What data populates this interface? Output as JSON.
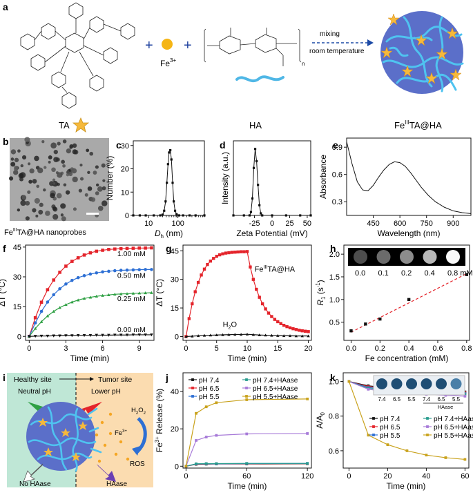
{
  "panels": {
    "a": {
      "letter": "a",
      "labels": {
        "ta": "TA",
        "fe": "Fe",
        "fe_sup": "3+",
        "ha": "HA",
        "mixing": "mixing",
        "room_temp": "room temperature",
        "product": "Fe",
        "product_sup": "III",
        "product_rest": "TA@HA",
        "plus": "+"
      }
    },
    "b": {
      "letter": "b",
      "caption": "Fe",
      "caption_sup": "III",
      "caption_rest": "TA@HA nanoprobes"
    },
    "i": {
      "letter": "i",
      "healthy": "Healthy site",
      "tumor": "Tumor site",
      "neutral_ph": "Neutral pH",
      "lower_ph": "Lower pH",
      "h2o2": "H",
      "h2o2_sub1": "2",
      "h2o2_o": "O",
      "h2o2_sub2": "2",
      "fe": "Fe",
      "fe_sup": "3+",
      "ros": "ROS",
      "no_haase": "No HAase",
      "haase": "HAase"
    }
  },
  "colors": {
    "red": "#e4242b",
    "blue": "#2d6fd4",
    "green": "#2ea043",
    "black": "#111111",
    "purple": "#a77ad8",
    "gold": "#c9a21c",
    "teal": "#2a9d8f"
  },
  "chart_data": [
    {
      "id": "c",
      "letter": "c",
      "type": "line",
      "xlabel": "D",
      "xlabel_sub": "h",
      "xlabel_unit": " (nm)",
      "ylabel": "Number (%)",
      "xscale": "log",
      "xlim": [
        3,
        800
      ],
      "ylim": [
        0,
        32
      ],
      "xticks": [
        10,
        100
      ],
      "xtick_labels": [
        "10",
        "100"
      ],
      "yticks": [
        0,
        10,
        20,
        30
      ],
      "ytick_labels": [
        "0",
        "10",
        "20",
        "30"
      ],
      "x": [
        3,
        5,
        8,
        15,
        25,
        30,
        34,
        38,
        42,
        46,
        50,
        55,
        60,
        66,
        72,
        80,
        90,
        110,
        150,
        250,
        400,
        800
      ],
      "y": [
        0,
        0,
        0,
        0,
        0,
        0.3,
        2,
        6,
        14,
        22,
        27,
        28,
        24,
        14,
        6,
        2,
        0.5,
        0,
        0,
        0,
        0,
        0
      ]
    },
    {
      "id": "d",
      "letter": "d",
      "type": "line",
      "xlabel": "Zeta Potential (mV)",
      "ylabel": "Intensity (a.u.)",
      "xlim": [
        -55,
        55
      ],
      "ylim": [
        0,
        1.1
      ],
      "xticks": [
        -25,
        0,
        25,
        50
      ],
      "xtick_labels": [
        "-25",
        "0",
        "25",
        "50"
      ],
      "x": [
        -55,
        -40,
        -32,
        -30,
        -28,
        -26,
        -24,
        -22,
        -20,
        -18,
        -16,
        -14,
        0,
        20,
        40,
        55
      ],
      "y": [
        0,
        0,
        0,
        0.05,
        0.25,
        0.7,
        0.98,
        0.8,
        0.45,
        0.15,
        0.03,
        0,
        0,
        0,
        0,
        0
      ]
    },
    {
      "id": "e",
      "letter": "e",
      "type": "line",
      "xlabel": "Wavelength (nm)",
      "ylabel": "Absorbance",
      "xlim": [
        300,
        1000
      ],
      "ylim": [
        0.15,
        1.0
      ],
      "xticks": [
        450,
        600,
        750,
        900
      ],
      "xtick_labels": [
        "450",
        "600",
        "750",
        "900"
      ],
      "yticks": [
        0.3,
        0.6,
        0.9
      ],
      "ytick_labels": [
        "0.3",
        "0.6",
        "0.9"
      ],
      "x": [
        300,
        330,
        360,
        390,
        420,
        450,
        480,
        510,
        540,
        570,
        600,
        630,
        660,
        690,
        720,
        760,
        800,
        850,
        900,
        950,
        1000
      ],
      "y": [
        0.96,
        0.72,
        0.52,
        0.43,
        0.42,
        0.48,
        0.57,
        0.65,
        0.71,
        0.74,
        0.73,
        0.69,
        0.62,
        0.54,
        0.46,
        0.37,
        0.3,
        0.24,
        0.2,
        0.18,
        0.17
      ]
    },
    {
      "id": "f",
      "letter": "f",
      "type": "line",
      "xlabel": "Time (min)",
      "ylabel": "ΔT (°C)",
      "xlim": [
        -0.3,
        10.2
      ],
      "ylim": [
        -2,
        46
      ],
      "xticks": [
        0,
        3,
        6,
        9
      ],
      "xtick_labels": [
        "0",
        "3",
        "6",
        "9"
      ],
      "yticks": [
        0,
        15,
        30,
        45
      ],
      "ytick_labels": [
        "0",
        "15",
        "30",
        "45"
      ],
      "x": [
        0,
        0.5,
        1,
        1.5,
        2,
        2.5,
        3,
        3.5,
        4,
        4.5,
        5,
        5.5,
        6,
        6.5,
        7,
        7.5,
        8,
        8.5,
        9,
        9.5,
        10
      ],
      "series": [
        {
          "name": "1.00 mM",
          "color": "#e4242b",
          "marker": "square",
          "values": [
            0,
            9.4,
            17.2,
            23.5,
            28.4,
            32.3,
            35.4,
            37.8,
            39.6,
            41.0,
            42.1,
            42.9,
            43.4,
            43.8,
            44.0,
            44.2,
            44.3,
            44.4,
            44.5,
            44.5,
            44.6
          ]
        },
        {
          "name": "0.50 mM",
          "color": "#2d6fd4",
          "marker": "circle",
          "values": [
            0,
            6.8,
            12.6,
            17.3,
            21.0,
            24.0,
            26.4,
            28.2,
            29.6,
            30.6,
            31.4,
            32.0,
            32.5,
            32.8,
            33.1,
            33.3,
            33.4,
            33.5,
            33.6,
            33.7,
            33.7
          ]
        },
        {
          "name": "0.25 mM",
          "color": "#2ea043",
          "marker": "triangle",
          "values": [
            0,
            4.0,
            7.4,
            10.3,
            12.6,
            14.5,
            16.0,
            17.3,
            18.3,
            19.1,
            19.7,
            20.2,
            20.6,
            20.9,
            21.2,
            21.4,
            21.5,
            21.7,
            21.8,
            21.9,
            22.0
          ]
        },
        {
          "name": "0.00 mM",
          "color": "#111111",
          "marker": "invtriangle",
          "values": [
            0,
            0.1,
            0.2,
            0.2,
            0.3,
            0.3,
            0.4,
            0.4,
            0.5,
            0.5,
            0.5,
            0.6,
            0.6,
            0.6,
            0.7,
            0.7,
            0.7,
            0.8,
            0.8,
            0.8,
            0.8
          ]
        }
      ]
    },
    {
      "id": "g",
      "letter": "g",
      "type": "line",
      "xlabel": "Time (min)",
      "ylabel": "ΔT (°C)",
      "xlim": [
        -0.5,
        20.5
      ],
      "ylim": [
        -2,
        48
      ],
      "xticks": [
        0,
        5,
        10,
        15,
        20
      ],
      "xtick_labels": [
        "0",
        "5",
        "10",
        "15",
        "20"
      ],
      "yticks": [
        0,
        15,
        30,
        45
      ],
      "ytick_labels": [
        "0",
        "15",
        "30",
        "45"
      ],
      "label_fe": "Fe",
      "label_fe_sup": "III",
      "label_fe_rest": "TA@HA",
      "label_h2o": "H",
      "label_h2o_sub": "2",
      "label_h2o_rest": "O",
      "series": [
        {
          "name": "FeIIITA@HA",
          "color": "#e4242b",
          "marker": "square",
          "x": [
            0,
            0.5,
            1,
            1.5,
            2,
            2.5,
            3,
            3.5,
            4,
            4.5,
            5,
            5.5,
            6,
            6.5,
            7,
            7.5,
            8,
            8.5,
            9,
            9.5,
            10,
            10.5,
            11,
            11.5,
            12,
            12.5,
            13,
            13.5,
            14,
            14.5,
            15,
            15.5,
            16,
            16.5,
            17,
            17.5,
            18,
            18.5,
            19,
            19.5,
            20
          ],
          "values": [
            0,
            9.4,
            17.2,
            23.5,
            28.4,
            32.3,
            35.4,
            37.8,
            39.6,
            41.0,
            42.1,
            42.9,
            43.4,
            43.8,
            44.0,
            44.2,
            44.3,
            44.4,
            44.5,
            44.5,
            44.6,
            36.5,
            30.0,
            24.8,
            20.6,
            17.2,
            14.5,
            12.3,
            10.5,
            9.0,
            7.8,
            6.8,
            5.9,
            5.2,
            4.6,
            4.1,
            3.7,
            3.3,
            3.0,
            2.8,
            2.6
          ]
        },
        {
          "name": "H2O",
          "color": "#111111",
          "marker": "triangle",
          "x": [
            0,
            1,
            2,
            3,
            4,
            5,
            6,
            7,
            8,
            9,
            10,
            11,
            12,
            13,
            14,
            15,
            16,
            17,
            18,
            19,
            20
          ],
          "values": [
            0,
            0.2,
            0.4,
            0.6,
            0.7,
            0.8,
            0.9,
            1.0,
            1.1,
            1.1,
            1.2,
            1.0,
            0.8,
            0.7,
            0.6,
            0.5,
            0.4,
            0.4,
            0.3,
            0.3,
            0.3
          ]
        }
      ]
    },
    {
      "id": "h",
      "letter": "h",
      "type": "scatter",
      "xlabel": "Fe concentration (mM)",
      "ylabel": "R",
      "ylabel_sub": "1",
      "ylabel_unit": " (s",
      "ylabel_sup": "-1",
      "ylabel_end": ")",
      "xlim": [
        -0.05,
        0.82
      ],
      "ylim": [
        0.1,
        2.2
      ],
      "xticks": [
        0.0,
        0.2,
        0.4,
        0.6,
        0.8
      ],
      "xtick_labels": [
        "0.0",
        "0.2",
        "0.4",
        "0.6",
        "0.8"
      ],
      "yticks": [
        0.5,
        1.0,
        1.5,
        2.0
      ],
      "ytick_labels": [
        "0.5",
        "1.0",
        "1.5",
        "2.0"
      ],
      "x": [
        0.0,
        0.1,
        0.2,
        0.4,
        0.8
      ],
      "values": [
        0.31,
        0.46,
        0.57,
        1.0,
        1.55
      ],
      "fit": [
        [
          0.0,
          0.28
        ],
        [
          0.8,
          1.57
        ]
      ],
      "phantom_labels": [
        "0.0",
        "0.1",
        "0.2",
        "0.4",
        "0.8 mM"
      ],
      "phantom_gray": [
        0.3,
        0.42,
        0.55,
        0.72,
        0.98
      ]
    },
    {
      "id": "j",
      "letter": "j",
      "type": "line",
      "xlabel": "Time (min)",
      "ylabel": "Fe",
      "ylabel_sup": "3+",
      "ylabel_rest": " Release (%)",
      "xlim": [
        -3,
        124
      ],
      "ylim": [
        -1,
        50
      ],
      "xticks": [
        0,
        60,
        120
      ],
      "xtick_labels": [
        "0",
        "60",
        "120"
      ],
      "yticks": [
        0,
        20,
        40
      ],
      "ytick_labels": [
        "0",
        "20",
        "40"
      ],
      "x": [
        0,
        10,
        20,
        30,
        60,
        120
      ],
      "series": [
        {
          "name": "pH 7.4",
          "color": "#111111",
          "values": [
            0,
            1.0,
            1.1,
            1.2,
            1.2,
            1.3
          ]
        },
        {
          "name": "pH 6.5",
          "color": "#e4242b",
          "values": [
            0,
            1.1,
            1.2,
            1.3,
            1.3,
            1.4
          ]
        },
        {
          "name": "pH 5.5",
          "color": "#2d6fd4",
          "values": [
            0,
            1.2,
            1.3,
            1.3,
            1.4,
            1.5
          ]
        },
        {
          "name": "pH 7.4+HAase",
          "color": "#2a9d8f",
          "values": [
            0,
            1.3,
            1.4,
            1.4,
            1.5,
            1.5
          ]
        },
        {
          "name": "pH 6.5+HAase",
          "color": "#a77ad8",
          "values": [
            0,
            13.8,
            15.6,
            16.5,
            17.3,
            17.5
          ]
        },
        {
          "name": "pH 5.5+HAase",
          "color": "#c9a21c",
          "values": [
            0,
            28.3,
            31.8,
            34.0,
            35.6,
            36.0
          ]
        }
      ]
    },
    {
      "id": "k",
      "letter": "k",
      "type": "line",
      "xlabel": "Time (min)",
      "ylabel": "A/A",
      "ylabel_sub": "0",
      "xlim": [
        -3,
        62
      ],
      "ylim": [
        0.5,
        1.05
      ],
      "xticks": [
        0,
        20,
        40,
        60
      ],
      "xtick_labels": [
        "0",
        "20",
        "40",
        "60"
      ],
      "yticks": [
        0.6,
        0.8,
        1.0
      ],
      "ytick_labels": [
        "0.6",
        "0.8",
        "1.0"
      ],
      "x": [
        0,
        10,
        20,
        30,
        40,
        50,
        60
      ],
      "series": [
        {
          "name": "pH 7.4",
          "color": "#111111",
          "values": [
            1.0,
            0.975,
            0.965,
            0.955,
            0.95,
            0.945,
            0.94
          ]
        },
        {
          "name": "pH 6.5",
          "color": "#e4242b",
          "values": [
            1.0,
            0.97,
            0.96,
            0.95,
            0.945,
            0.94,
            0.935
          ]
        },
        {
          "name": "pH 5.5",
          "color": "#2d6fd4",
          "values": [
            1.0,
            0.965,
            0.955,
            0.945,
            0.94,
            0.935,
            0.93
          ]
        },
        {
          "name": "pH 7.4+HAase",
          "color": "#2a9d8f",
          "values": [
            1.0,
            0.96,
            0.95,
            0.94,
            0.935,
            0.93,
            0.925
          ]
        },
        {
          "name": "pH 6.5+HAase",
          "color": "#a77ad8",
          "values": [
            1.0,
            0.955,
            0.94,
            0.93,
            0.925,
            0.92,
            0.915
          ]
        },
        {
          "name": "pH 5.5+HAase",
          "color": "#c9a21c",
          "values": [
            1.0,
            0.69,
            0.635,
            0.6,
            0.575,
            0.56,
            0.55
          ]
        }
      ],
      "vial_labels": [
        "7.4",
        "6.5",
        "5.5",
        "7.4",
        "6.5",
        "5.5"
      ],
      "vial_note": "HAase"
    }
  ]
}
